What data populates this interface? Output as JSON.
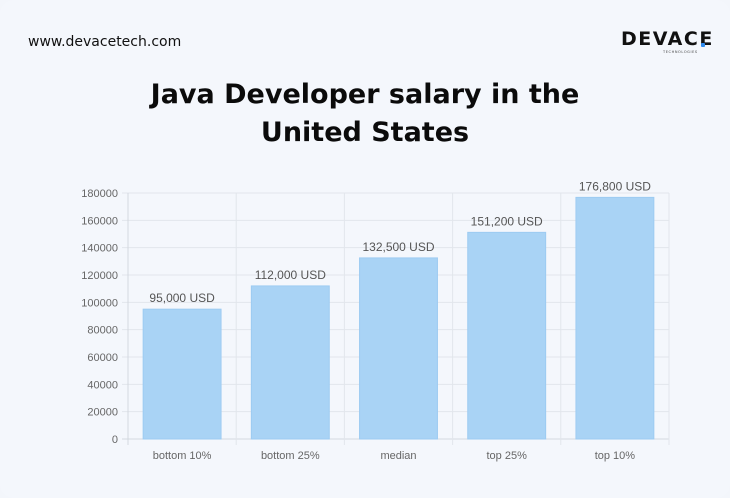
{
  "header": {
    "site_url": "www.devacetech.com",
    "logo_text": "DEVACE",
    "logo_subtext": "TECHNOLOGIES",
    "accent_color": "#2f8cf0"
  },
  "chart_data": {
    "type": "bar",
    "title": "Java Developer salary in the United States",
    "categories": [
      "bottom 10%",
      "bottom 25%",
      "median",
      "top 25%",
      "top 10%"
    ],
    "values": [
      95000,
      112000,
      132500,
      151200,
      176800
    ],
    "data_labels": [
      "95,000 USD",
      "112,000 USD",
      "132,500 USD",
      "151,200 USD",
      "176,800 USD"
    ],
    "y_ticks": [
      "0",
      "20000",
      "40000",
      "60000",
      "80000",
      "100000",
      "120000",
      "140000",
      "160000",
      "180000"
    ],
    "ylim": [
      0,
      180000
    ],
    "grid": true,
    "bar_color": "#a9d3f5"
  }
}
